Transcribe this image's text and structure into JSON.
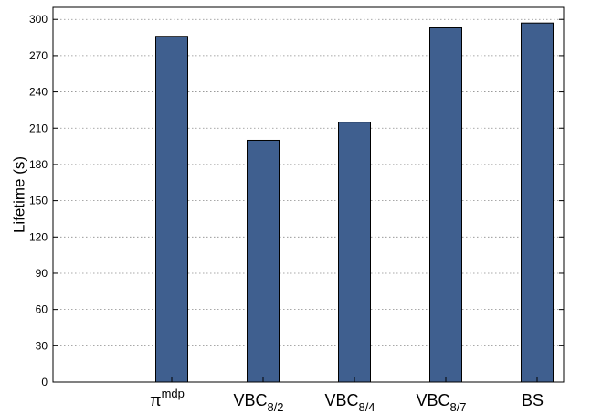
{
  "chart_data": {
    "type": "bar",
    "categories": [
      {
        "base": "π",
        "sup": "mdp",
        "sub": ""
      },
      {
        "base": "VBC",
        "sup": "",
        "sub": "8/2"
      },
      {
        "base": "VBC",
        "sup": "",
        "sub": "8/4"
      },
      {
        "base": "VBC",
        "sup": "",
        "sub": "8/7"
      },
      {
        "base": "BS",
        "sup": "",
        "sub": ""
      }
    ],
    "values": [
      286,
      200,
      215,
      293,
      297
    ],
    "ylabel": "Lifetime (s)",
    "xlabel": "",
    "ylim": [
      0,
      310
    ],
    "yticks": [
      0,
      30,
      60,
      90,
      120,
      150,
      180,
      210,
      240,
      270,
      300
    ],
    "grid": "horizontal dotted",
    "colors": {
      "bar": "#3f5f8f",
      "bar_edge": "#000000",
      "axis": "#000000",
      "grid": "#8c8c8c"
    }
  }
}
